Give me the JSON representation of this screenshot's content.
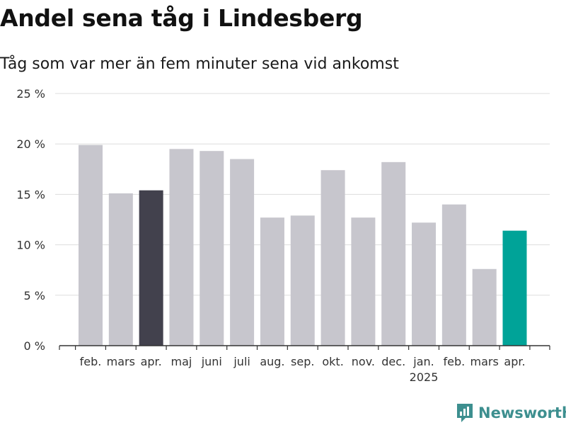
{
  "title": "Andel sena tåg i Lindesberg",
  "subtitle": "Tåg som var mer än fem minuter sena vid ankomst",
  "brand": {
    "name": "Newsworthy",
    "icon": "newsworthy-logo-icon",
    "color": "#3d8f8f"
  },
  "colors": {
    "default": "#c7c6cd",
    "highlight_dark": "#42414d",
    "highlight_current": "#00a398",
    "grid": "#dddddd",
    "axis": "#333333"
  },
  "chart_data": {
    "type": "bar",
    "categories": [
      "feb.",
      "mars",
      "apr.",
      "maj",
      "juni",
      "juli",
      "aug.",
      "sep.",
      "okt.",
      "nov.",
      "dec.",
      "jan.",
      "feb.",
      "mars",
      "apr."
    ],
    "year_labels": [
      {
        "index": 11,
        "label": "2025"
      }
    ],
    "values": [
      19.9,
      15.1,
      15.4,
      19.5,
      19.3,
      18.5,
      12.7,
      12.9,
      17.4,
      12.7,
      18.2,
      12.2,
      14.0,
      7.6,
      11.4
    ],
    "highlight": {
      "2": "dark",
      "14": "current"
    },
    "yticks": [
      0,
      5,
      10,
      15,
      20,
      25
    ],
    "ytick_labels": [
      "0 %",
      "5 %",
      "10 %",
      "15 %",
      "20 %",
      "25 %"
    ],
    "ylim": [
      0,
      25
    ],
    "grid": true,
    "legend": "none",
    "xlabel": "",
    "ylabel": ""
  }
}
